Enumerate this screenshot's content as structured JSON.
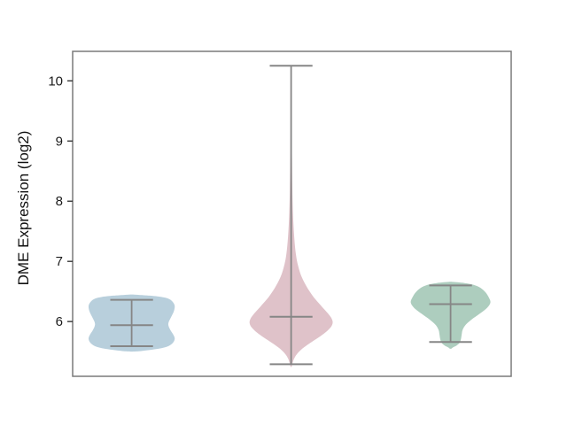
{
  "figure": {
    "background": "#ffffff",
    "title": ""
  },
  "chart_data": {
    "type": "violin",
    "title": "",
    "xlabel": "",
    "ylabel": "DME Expression (log2)",
    "yticks": [
      6,
      7,
      8,
      9,
      10
    ],
    "x_tick_labels": [],
    "ylim": [
      5.09,
      10.49
    ],
    "xlim": [
      -0.37,
      2.38
    ],
    "grid": false,
    "legend_position": "none",
    "colors": {
      "line": "#868686",
      "spine": "#7a7a7a",
      "tick": "#2a2a2a",
      "tick_label": "#1a1a1a"
    },
    "cap_halfwidth": 0.134,
    "groups": [
      {
        "name": "group-1",
        "fill": "#b8cfdc",
        "position": 0,
        "max_halfwidth": 0.27,
        "stats": {
          "whisker_high": 6.36,
          "median": 5.94,
          "whisker_low": 5.59
        },
        "kde_profile": [
          [
            6.45,
            0.02
          ],
          [
            6.43,
            0.42
          ],
          [
            6.41,
            0.68
          ],
          [
            6.38,
            0.85
          ],
          [
            6.33,
            0.95
          ],
          [
            6.26,
            1.0
          ],
          [
            6.17,
            0.98
          ],
          [
            6.08,
            0.92
          ],
          [
            5.99,
            0.86
          ],
          [
            5.93,
            0.855
          ],
          [
            5.86,
            0.9
          ],
          [
            5.78,
            0.97
          ],
          [
            5.71,
            1.0
          ],
          [
            5.64,
            0.95
          ],
          [
            5.58,
            0.81
          ],
          [
            5.54,
            0.55
          ],
          [
            5.51,
            0.22
          ],
          [
            5.5,
            0.02
          ]
        ]
      },
      {
        "name": "group-2",
        "fill": "#dfc2c9",
        "position": 1,
        "max_halfwidth": 0.26,
        "stats": {
          "whisker_high": 10.25,
          "median": 6.08,
          "whisker_low": 5.29
        },
        "kde_profile": [
          [
            10.25,
            0.012
          ],
          [
            9.5,
            0.015
          ],
          [
            8.8,
            0.02
          ],
          [
            8.2,
            0.03
          ],
          [
            7.8,
            0.045
          ],
          [
            7.45,
            0.07
          ],
          [
            7.15,
            0.11
          ],
          [
            6.95,
            0.16
          ],
          [
            6.75,
            0.25
          ],
          [
            6.55,
            0.4
          ],
          [
            6.4,
            0.55
          ],
          [
            6.28,
            0.7
          ],
          [
            6.18,
            0.83
          ],
          [
            6.1,
            0.93
          ],
          [
            6.03,
            0.99
          ],
          [
            5.97,
            1.0
          ],
          [
            5.9,
            0.95
          ],
          [
            5.82,
            0.83
          ],
          [
            5.73,
            0.65
          ],
          [
            5.64,
            0.45
          ],
          [
            5.55,
            0.27
          ],
          [
            5.46,
            0.14
          ],
          [
            5.38,
            0.07
          ],
          [
            5.3,
            0.03
          ],
          [
            5.25,
            0.012
          ]
        ]
      },
      {
        "name": "group-3",
        "fill": "#adcdbe",
        "position": 2,
        "max_halfwidth": 0.25,
        "stats": {
          "whisker_high": 6.6,
          "median": 6.29,
          "whisker_low": 5.66
        },
        "kde_profile": [
          [
            6.66,
            0.02
          ],
          [
            6.64,
            0.35
          ],
          [
            6.61,
            0.58
          ],
          [
            6.56,
            0.75
          ],
          [
            6.49,
            0.87
          ],
          [
            6.41,
            0.95
          ],
          [
            6.32,
            1.0
          ],
          [
            6.23,
            0.92
          ],
          [
            6.13,
            0.73
          ],
          [
            6.03,
            0.52
          ],
          [
            5.94,
            0.37
          ],
          [
            5.86,
            0.3
          ],
          [
            5.79,
            0.28
          ],
          [
            5.71,
            0.26
          ],
          [
            5.65,
            0.23
          ],
          [
            5.6,
            0.15
          ],
          [
            5.57,
            0.06
          ],
          [
            5.55,
            0.02
          ]
        ]
      }
    ]
  }
}
